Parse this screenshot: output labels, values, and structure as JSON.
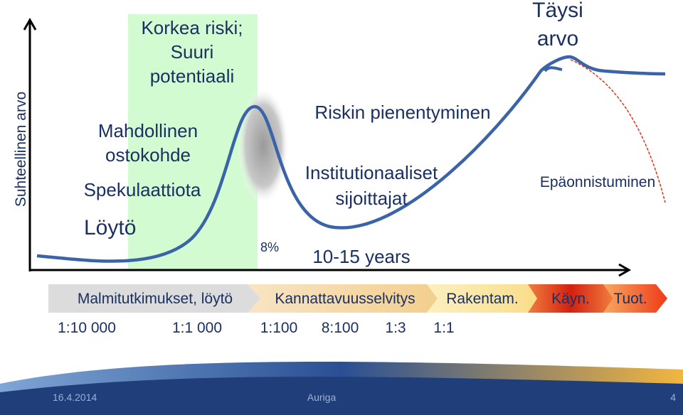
{
  "y_axis_label": "Suhteellinen arvo",
  "labels": {
    "high_risk": [
      "Korkea riski;",
      "Suuri",
      "potentiaali"
    ],
    "target": [
      "Mahdollinen",
      "ostokohde"
    ],
    "speculation": "Spekulaattiota",
    "discovery": "Löytö",
    "percent": "8%",
    "risk_reduction": "Riskin pienentyminen",
    "institutional": [
      "Institutionaaliset",
      "sijoittajat"
    ],
    "duration": "10-15 years",
    "full_value": [
      "Täysi",
      "arvo"
    ],
    "failure": "Epäonnistuminen"
  },
  "stages": [
    "Malmitutkimukset, löytö",
    "Kannattavuusselvitys",
    "Rakentam.",
    "Käyn.",
    "Tuot."
  ],
  "ratios": [
    "1:10 000",
    "1:1 000",
    "1:100",
    "8:100",
    "1:3",
    "1:1"
  ],
  "footer": {
    "date": "16.4.2014",
    "company": "Auriga",
    "page": "4"
  }
}
